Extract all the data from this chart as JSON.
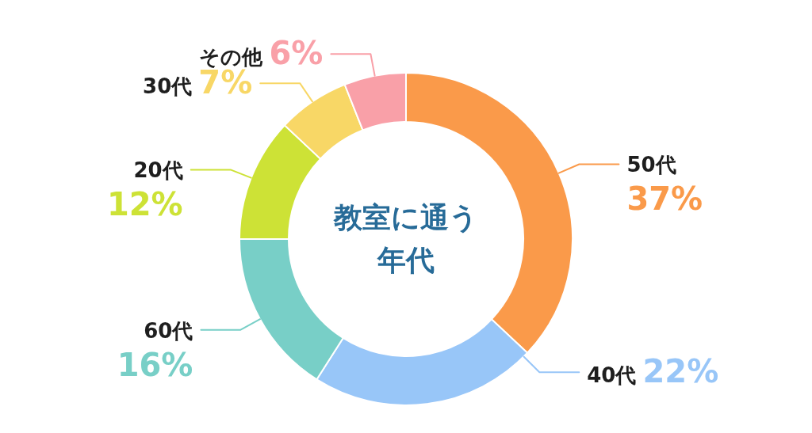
{
  "chart_data": {
    "type": "donut",
    "title": "教室に通う年代",
    "categories": [
      "50代",
      "40代",
      "60代",
      "20代",
      "30代",
      "その他"
    ],
    "values": [
      37,
      22,
      16,
      12,
      7,
      6
    ],
    "colors": [
      "#fa9a4a",
      "#98c6f8",
      "#78cfc7",
      "#cde236",
      "#f8d766",
      "#f9a0a8"
    ],
    "value_labels": [
      "37%",
      "22%",
      "16%",
      "12%",
      "7%",
      "6%"
    ]
  }
}
